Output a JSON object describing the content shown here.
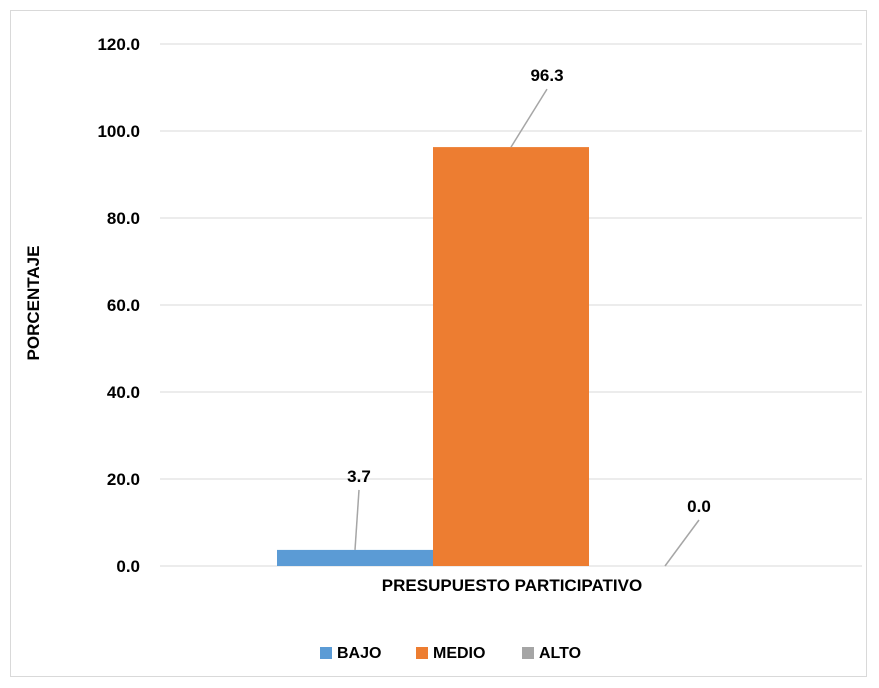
{
  "chart_data": {
    "type": "bar",
    "title": "",
    "xlabel": "PRESUPUESTO PARTICIPATIVO",
    "ylabel": "PORCENTAJE",
    "categories": [
      "PRESUPUESTO PARTICIPATIVO"
    ],
    "ylim": [
      0,
      120
    ],
    "yticks": [
      "0.0",
      "20.0",
      "40.0",
      "60.0",
      "80.0",
      "100.0",
      "120.0"
    ],
    "series": [
      {
        "name": "BAJO",
        "values": [
          3.7
        ],
        "label": "3.7",
        "color": "#5b9bd5"
      },
      {
        "name": "MEDIO",
        "values": [
          96.3
        ],
        "label": "96.3",
        "color": "#ed7d31"
      },
      {
        "name": "ALTO",
        "values": [
          0.0
        ],
        "label": "0.0",
        "color": "#a5a5a5"
      }
    ],
    "grid": true,
    "legend_position": "bottom"
  },
  "colors": {
    "grid": "#d9d9d9",
    "leader": "#a6a6a6"
  }
}
